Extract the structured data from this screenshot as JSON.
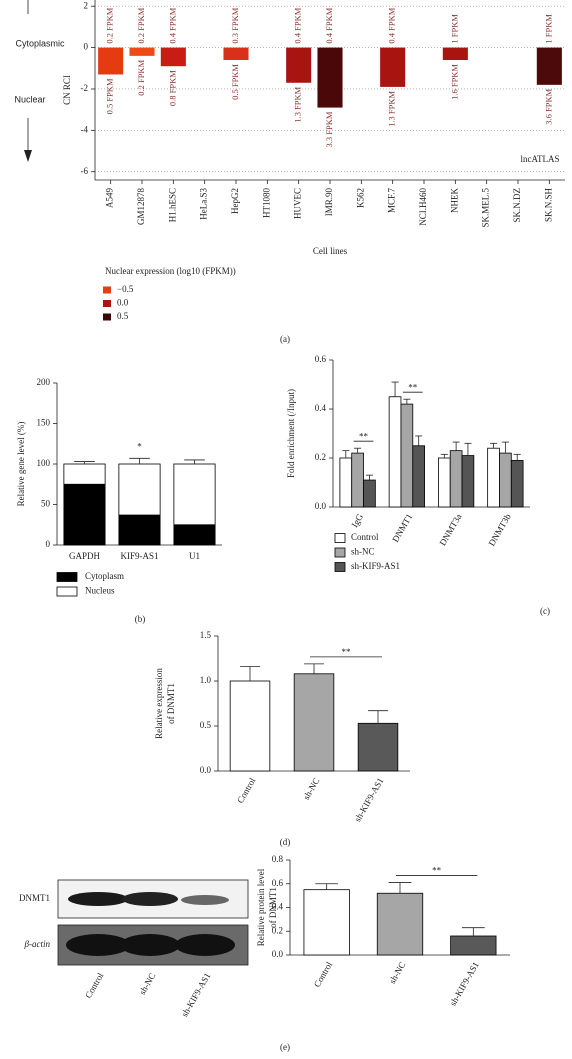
{
  "chart_data": [
    {
      "type": "bar",
      "panel_label": "(a)",
      "ylabel": "CN RCI",
      "xlabel": "Cell lines",
      "side_labels": [
        "Cytoplasmic",
        "Nuclear"
      ],
      "annotation": "lncATLAS",
      "categories": [
        "A549",
        "GM12878",
        "H1.hESC",
        "HeLa.S3",
        "HepG2",
        "HT1080",
        "HUVEC",
        "IMR.90",
        "K562",
        "MCF.7",
        "NCI.H460",
        "NHEK",
        "SK.MEL.5",
        "SK.N.DZ",
        "SK.N.SH"
      ],
      "values": [
        -1.3,
        -0.4,
        -0.9,
        null,
        -0.6,
        null,
        -1.7,
        -2.9,
        null,
        -1.9,
        null,
        -0.6,
        null,
        null,
        -1.8
      ],
      "colors": [
        "#e53b10",
        "#ef4a16",
        "#c81c14",
        null,
        "#d9301a",
        null,
        "#a8140f",
        "#4a0808",
        null,
        "#a8140f",
        null,
        "#a8140f",
        null,
        null,
        "#4d0a0a"
      ],
      "cytoplasmic_labels": [
        "0.2 FPKM",
        "0.2 FPKM",
        "0.4 FPKM",
        null,
        "0.3 FPKM",
        null,
        "0.4 FPKM",
        "0.4 FPKM",
        null,
        "0.4 FPKM",
        null,
        "1 FPKM",
        null,
        null,
        "1 FPKM"
      ],
      "nuclear_labels": [
        "0.5 FPKM",
        "0.2 FPKM",
        "0.8 FPKM",
        null,
        "0.5 FPKM",
        null,
        "1.3 FPKM",
        "3.3 FPKM",
        null,
        "1.3 FPKM",
        null,
        "1.6 FPKM",
        null,
        null,
        "3.6 FPKM"
      ],
      "ylim": [
        -6.4,
        2.3
      ],
      "yticks": [
        2,
        0,
        -2,
        -4,
        -6
      ],
      "grid": true,
      "legend": {
        "title": "Nuclear expression (log10 (FPKM))",
        "items": [
          {
            "label": "−0.5",
            "color": "#e63e12"
          },
          {
            "label": "0.0",
            "color": "#b5120f"
          },
          {
            "label": "0.5",
            "color": "#3d0606"
          }
        ]
      }
    },
    {
      "type": "stacked_bar",
      "panel_label": "(b)",
      "ylabel": "Relative gene level (%)",
      "edgecolor": "#000000",
      "categories": [
        "GAPDH",
        "KIF9-AS1",
        "U1"
      ],
      "series": [
        {
          "name": "Cytoplasm",
          "color": "#000000",
          "values": [
            75,
            37,
            25
          ],
          "errors": [
            3,
            6,
            6
          ]
        },
        {
          "name": "Nucleus",
          "color": "#ffffff",
          "values": [
            25,
            63,
            75
          ],
          "errors": [
            3,
            7,
            5
          ]
        }
      ],
      "annotations": [
        {
          "text": "*",
          "category": "KIF9-AS1"
        }
      ],
      "ylim": [
        0,
        200
      ],
      "yticks": [
        0,
        50,
        100,
        150,
        200
      ]
    },
    {
      "type": "grouped_bar",
      "panel_label": "(c)",
      "ylabel": "Fold enrichment (/Input)",
      "edgecolor": "#000000",
      "categories": [
        "IgG",
        "DNMT1",
        "DNMT3a",
        "DNMT3b"
      ],
      "series": [
        {
          "name": "Control",
          "color": "#ffffff",
          "values": [
            0.2,
            0.45,
            0.2,
            0.24
          ],
          "errors": [
            0.03,
            0.06,
            0.015,
            0.02
          ]
        },
        {
          "name": "sh-NC",
          "color": "#a6a6a6",
          "values": [
            0.22,
            0.42,
            0.23,
            0.22
          ],
          "errors": [
            0.02,
            0.02,
            0.035,
            0.045
          ]
        },
        {
          "name": "sh-KIF9-AS1",
          "color": "#555555",
          "values": [
            0.11,
            0.25,
            0.21,
            0.19
          ],
          "errors": [
            0.02,
            0.04,
            0.05,
            0.025
          ]
        }
      ],
      "annotations": [
        {
          "text": "**",
          "category": "IgG",
          "between": [
            "sh-NC",
            "sh-KIF9-AS1"
          ]
        },
        {
          "text": "**",
          "category": "DNMT1",
          "between": [
            "sh-NC",
            "sh-KIF9-AS1"
          ]
        }
      ],
      "ylim": [
        0,
        0.6
      ],
      "yticks": [
        {
          "value": 0,
          "label": "0.0"
        },
        0.2,
        0.4,
        0.6
      ]
    },
    {
      "type": "bar",
      "panel_label": "(d)",
      "ylabel": [
        "Relative expression",
        "of DNMT1"
      ],
      "edgecolor": "#000000",
      "categories": [
        "Control",
        "sh-NC",
        "sh-KIF9-AS1"
      ],
      "values": [
        1.0,
        1.08,
        0.53
      ],
      "errors": [
        0.16,
        0.11,
        0.14
      ],
      "colors": [
        "#ffffff",
        "#a6a6a6",
        "#595959"
      ],
      "annotations": [
        {
          "text": "**",
          "between": [
            "sh-NC",
            "sh-KIF9-AS1"
          ]
        }
      ],
      "ylim": [
        0,
        1.5
      ],
      "yticks": [
        {
          "value": 0,
          "label": "0.0"
        },
        0.5,
        {
          "value": 1,
          "label": "1.0"
        },
        1.5
      ]
    },
    {
      "type": "bar",
      "panel_label": "(e)",
      "ylabel": [
        "Relative protein level",
        "of DNMT1"
      ],
      "edgecolor": "#000000",
      "blot_rows": [
        "DNMT1",
        "β-actin"
      ],
      "blot_lanes": [
        "Control",
        "sh-NC",
        "sh-KIF9-AS1"
      ],
      "categories": [
        "Control",
        "sh-NC",
        "sh-KIF9-AS1"
      ],
      "values": [
        0.55,
        0.52,
        0.16
      ],
      "errors": [
        0.05,
        0.09,
        0.07
      ],
      "colors": [
        "#ffffff",
        "#a6a6a6",
        "#595959"
      ],
      "annotations": [
        {
          "text": "**",
          "between": [
            "sh-NC",
            "sh-KIF9-AS1"
          ]
        }
      ],
      "ylim": [
        0,
        0.8
      ],
      "yticks": [
        {
          "value": 0,
          "label": "0.0"
        },
        0.2,
        0.4,
        0.6,
        0.8
      ]
    }
  ]
}
